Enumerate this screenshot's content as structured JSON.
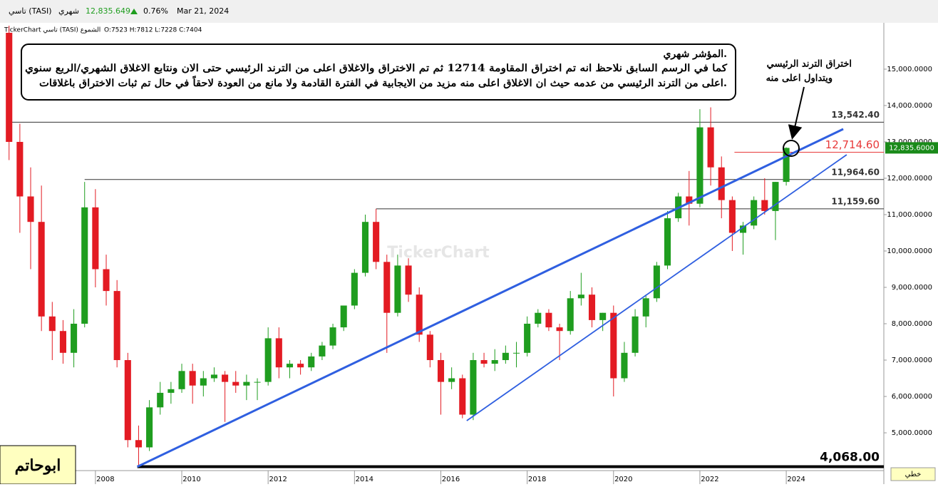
{
  "header": {
    "symbol": "تاسي (TASI)",
    "period": "شهري",
    "price": "12,835.649",
    "change": "0.76%",
    "date": "Mar 21, 2024",
    "chart_label": "TickerChart تاسي (TASI) الشموع",
    "ohlc_text": "O:7523 H:7812 L:7228 C:7404",
    "watermark": "TickerChart"
  },
  "chart_data": {
    "type": "candlestick",
    "up_color": "#1f9d1f",
    "down_color": "#e31b23",
    "xlim": [
      2005.79,
      2026.26
    ],
    "ylim": [
      4020,
      16196
    ],
    "xticks": [
      2008,
      2010,
      2012,
      2014,
      2016,
      2018,
      2020,
      2022,
      2024
    ],
    "yticks": [
      {
        "value": 5000,
        "label": "5,000.0000"
      },
      {
        "value": 6000,
        "label": "6,000.0000"
      },
      {
        "value": 7000,
        "label": "7,000.0000"
      },
      {
        "value": 8000,
        "label": "8,000.0000"
      },
      {
        "value": 9000,
        "label": "9,000.0000"
      },
      {
        "value": 10000,
        "label": "10,000.0000"
      },
      {
        "value": 11000,
        "label": "11,000.0000"
      },
      {
        "value": 12000,
        "label": "12,000.0000"
      },
      {
        "value": 13000,
        "label": "13,000.0000"
      },
      {
        "value": 14000,
        "label": "14,000.0000"
      },
      {
        "value": 15000,
        "label": "15,000.0000"
      }
    ],
    "x": [
      2006.0,
      2006.25,
      2006.5,
      2006.75,
      2007.0,
      2007.25,
      2007.5,
      2007.75,
      2008.0,
      2008.25,
      2008.5,
      2008.75,
      2009.0,
      2009.25,
      2009.5,
      2009.75,
      2010.0,
      2010.25,
      2010.5,
      2010.75,
      2011.0,
      2011.25,
      2011.5,
      2011.75,
      2012.0,
      2012.25,
      2012.5,
      2012.75,
      2013.0,
      2013.25,
      2013.5,
      2013.75,
      2014.0,
      2014.25,
      2014.5,
      2014.75,
      2015.0,
      2015.25,
      2015.5,
      2015.75,
      2016.0,
      2016.25,
      2016.5,
      2016.75,
      2017.0,
      2017.25,
      2017.5,
      2017.75,
      2018.0,
      2018.25,
      2018.5,
      2018.75,
      2019.0,
      2019.25,
      2019.5,
      2019.75,
      2020.0,
      2020.25,
      2020.5,
      2020.75,
      2021.0,
      2021.25,
      2021.5,
      2021.75,
      2022.0,
      2022.25,
      2022.5,
      2022.75,
      2023.0,
      2023.25,
      2023.5,
      2023.75,
      2024.0
    ],
    "open": [
      16000,
      13000,
      11500,
      10800,
      8200,
      7800,
      7200,
      8000,
      11200,
      9500,
      8900,
      7000,
      4800,
      4600,
      5700,
      6100,
      6200,
      6700,
      6300,
      6500,
      6600,
      6400,
      6300,
      6400,
      6400,
      7600,
      6800,
      6900,
      6800,
      7100,
      7400,
      7900,
      8500,
      9400,
      10800,
      9700,
      8300,
      9600,
      8800,
      7700,
      7000,
      6400,
      6500,
      5500,
      7000,
      6900,
      7000,
      7200,
      7200,
      8000,
      8300,
      7900,
      7800,
      8700,
      8800,
      8100,
      8300,
      6500,
      7200,
      8200,
      8700,
      9600,
      10900,
      11500,
      11300,
      13400,
      12300,
      11400,
      10500,
      10700,
      11400,
      11100,
      11900
    ],
    "high": [
      16200,
      13500,
      12300,
      11800,
      8600,
      8100,
      8400,
      11900,
      11700,
      9900,
      9200,
      7200,
      5200,
      5900,
      6400,
      6400,
      6900,
      6900,
      6700,
      6800,
      6700,
      6700,
      6600,
      6500,
      7900,
      7900,
      7000,
      7000,
      7200,
      7500,
      8000,
      8500,
      9500,
      11000,
      11159,
      9900,
      9900,
      9800,
      9000,
      7800,
      7200,
      6800,
      6600,
      7200,
      7200,
      7300,
      7400,
      7500,
      8200,
      8400,
      8400,
      8000,
      8900,
      9400,
      9000,
      8300,
      8500,
      7500,
      8400,
      8800,
      9700,
      11100,
      11600,
      12200,
      13900,
      13950,
      12600,
      11500,
      10800,
      11500,
      12000,
      11900,
      12850
    ],
    "low": [
      12500,
      10500,
      9500,
      7800,
      7000,
      6900,
      6800,
      7900,
      9000,
      8500,
      6800,
      4600,
      4068,
      4500,
      5500,
      5800,
      6100,
      5800,
      6000,
      6400,
      5300,
      6100,
      5900,
      5900,
      6300,
      6500,
      6500,
      6600,
      6700,
      7000,
      7300,
      7800,
      8400,
      9300,
      9500,
      7200,
      8200,
      8600,
      7500,
      6800,
      5500,
      6200,
      5400,
      5350,
      6800,
      6700,
      6900,
      6800,
      7100,
      7900,
      7800,
      7000,
      7700,
      8500,
      7900,
      7800,
      6000,
      6400,
      7100,
      7900,
      8600,
      9500,
      10800,
      10700,
      11200,
      11800,
      10900,
      10000,
      9900,
      10600,
      11000,
      10300,
      11800
    ],
    "close": [
      13000,
      11500,
      10800,
      8200,
      7800,
      7200,
      8000,
      11200,
      9500,
      8900,
      7000,
      4800,
      4600,
      5700,
      6100,
      6200,
      6700,
      6300,
      6500,
      6600,
      6400,
      6300,
      6400,
      6400,
      7600,
      6800,
      6900,
      6800,
      7100,
      7400,
      7900,
      8500,
      9400,
      10800,
      9700,
      8300,
      9600,
      8800,
      7700,
      7000,
      6400,
      6500,
      5500,
      7000,
      6900,
      7000,
      7200,
      7200,
      8000,
      8300,
      7900,
      7800,
      8700,
      8800,
      8100,
      8300,
      6500,
      7200,
      8200,
      8700,
      9600,
      10900,
      11500,
      11300,
      13400,
      12300,
      11400,
      10500,
      10700,
      11400,
      11100,
      11900,
      12835
    ],
    "hlines": [
      {
        "value": 13542.4,
        "label": "13,542.40",
        "from": 2005.95,
        "color": "#333333"
      },
      {
        "value": 12714.6,
        "label": "12,714.60",
        "from": 2022.8,
        "color": "#e83a3a"
      },
      {
        "value": 11964.6,
        "label": "11,964.60",
        "from": 2007.75,
        "color": "#333333"
      },
      {
        "value": 11159.6,
        "label": "11,159.60",
        "from": 2014.5,
        "color": "#333333"
      },
      {
        "value": 4068,
        "label": "4,068.00",
        "from": 2008.97,
        "color": "#000000"
      }
    ],
    "trendlines": [
      {
        "x": [
          2008.97,
          2025.32
        ],
        "y": [
          4068,
          13353
        ],
        "color": "#2f5fe0",
        "width": 3
      },
      {
        "x": [
          2016.6,
          2025.4
        ],
        "y": [
          5333,
          12647
        ],
        "color": "#2f5fe0",
        "width": 1.8
      }
    ],
    "last_price": {
      "value": 12835.6,
      "label": "12,835.6000"
    }
  },
  "annotation": {
    "lines": [
      "المؤشر شهري.",
      "كما في الرسم السابق نلاحظ انه تم اختراق المقاومة 12714 ثم تم الاختراق والاغلاق اعلى من الترند الرئيسي حتى الان ونتابع الاغلاق الشهري/الربع سنوي",
      "اعلى من الترند الرئيسي من عدمه حيث ان الاغلاق اعلى منه مزيد من الايجابية في الفترة القادمة ولا مانع من العودة لاحقاً في حال تم ثبات الاختراق باغلاقات."
    ]
  },
  "callout": {
    "lines": [
      "اختراق الترند الرئيسي",
      "ويتداول اعلى منه"
    ]
  },
  "author": "ابوحاتم",
  "mode": "خطي"
}
